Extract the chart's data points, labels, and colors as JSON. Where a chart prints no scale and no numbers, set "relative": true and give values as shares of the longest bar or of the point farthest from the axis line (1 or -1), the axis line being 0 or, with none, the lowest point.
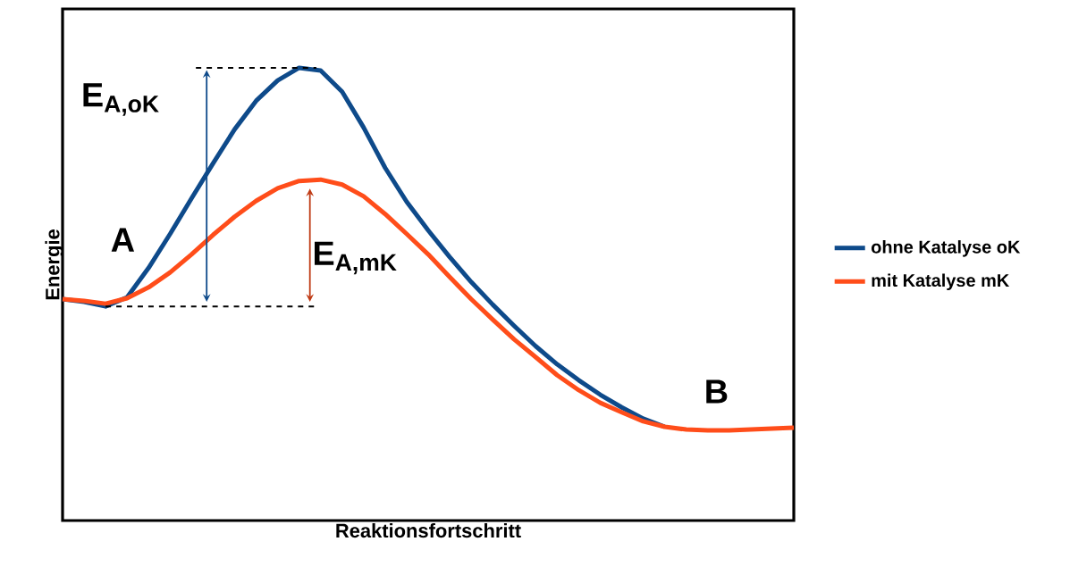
{
  "chart_data": {
    "type": "line",
    "relative": true,
    "xlabel": "Reaktionsfortschritt",
    "ylabel": "Energie",
    "categories": [
      null,
      null,
      null,
      null,
      null,
      null,
      null,
      null,
      null,
      null,
      null,
      null,
      null,
      null,
      null,
      null,
      null,
      null,
      null,
      null,
      null,
      null,
      null,
      null,
      null,
      null,
      null,
      null,
      null,
      null,
      null,
      null,
      null,
      null,
      null
    ],
    "series": [
      {
        "name": "ohne Katalyse oK",
        "color": "#0e4a8a",
        "values": [
          0.489,
          0.483,
          0.473,
          0.493,
          0.558,
          0.633,
          0.712,
          0.789,
          0.864,
          0.927,
          0.972,
          1.0,
          0.994,
          0.947,
          0.868,
          0.779,
          0.704,
          0.641,
          0.582,
          0.527,
          0.477,
          0.43,
          0.385,
          0.345,
          0.31,
          0.278,
          0.25,
          0.225,
          0.207,
          null,
          null,
          null,
          null,
          null,
          null
        ]
      },
      {
        "name": "mit Katalyse mK",
        "color": "#ff4d1a",
        "values": [
          0.489,
          0.485,
          0.479,
          0.491,
          0.515,
          0.548,
          0.588,
          0.631,
          0.671,
          0.706,
          0.734,
          0.75,
          0.753,
          0.742,
          0.716,
          0.677,
          0.633,
          0.588,
          0.538,
          0.489,
          0.444,
          0.4,
          0.361,
          0.321,
          0.288,
          0.26,
          0.239,
          0.219,
          0.207,
          0.201,
          0.199,
          0.199,
          0.201,
          0.203,
          0.205
        ]
      }
    ],
    "annotations": [
      "E$_{A,oK}$",
      "E$_{A,mK}$",
      "A",
      "B"
    ],
    "legend": "right",
    "marker": "none",
    "line_style": "solid"
  }
}
